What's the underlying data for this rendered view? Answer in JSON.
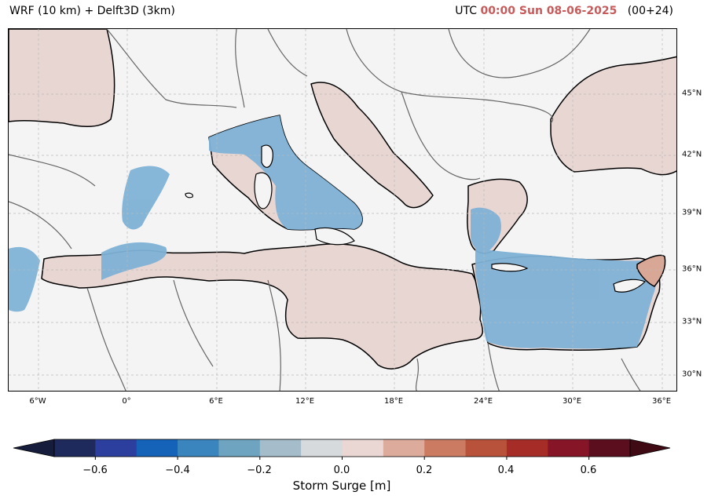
{
  "header": {
    "model": "WRF (10 km) + Delft3D (3km)",
    "utc_prefix": "UTC",
    "datetime": "00:00 Sun 08-06-2025",
    "lead": "(00+24)"
  },
  "map": {
    "lon_labels": [
      "6°W",
      "0°",
      "6°E",
      "12°E",
      "18°E",
      "24°E",
      "30°E",
      "36°E"
    ],
    "lat_labels": [
      "45°N",
      "42°N",
      "39°N",
      "36°N",
      "33°N",
      "30°N"
    ],
    "colors": {
      "land": "#f4f4f4",
      "sea_positive": "#e8d6d3",
      "sea_negative": "#7fb2d6",
      "levantine_positive": "#d9a795",
      "coastline": "#000000",
      "border": "#666666",
      "grid": "#b9b9b9"
    }
  },
  "colorbar": {
    "label": "Storm Surge [m]",
    "ticks": [
      "−0.6",
      "−0.4",
      "−0.2",
      "0.0",
      "0.2",
      "0.4",
      "0.6"
    ],
    "tick_values": [
      -0.6,
      -0.4,
      -0.2,
      0.0,
      0.2,
      0.4,
      0.6
    ],
    "min": -0.7,
    "max": 0.7,
    "step": 0.1,
    "extend": "both",
    "colors": [
      "#1e2a5c",
      "#2c3f9e",
      "#1463b8",
      "#3a85bd",
      "#6ea4bf",
      "#a5bccb",
      "#d7dadd",
      "#ead7d3",
      "#ddab9c",
      "#cc7b63",
      "#b9523a",
      "#a62c28",
      "#861527",
      "#5b0e1e"
    ],
    "end_low": "#161c3c",
    "end_high": "#3f0a14"
  }
}
